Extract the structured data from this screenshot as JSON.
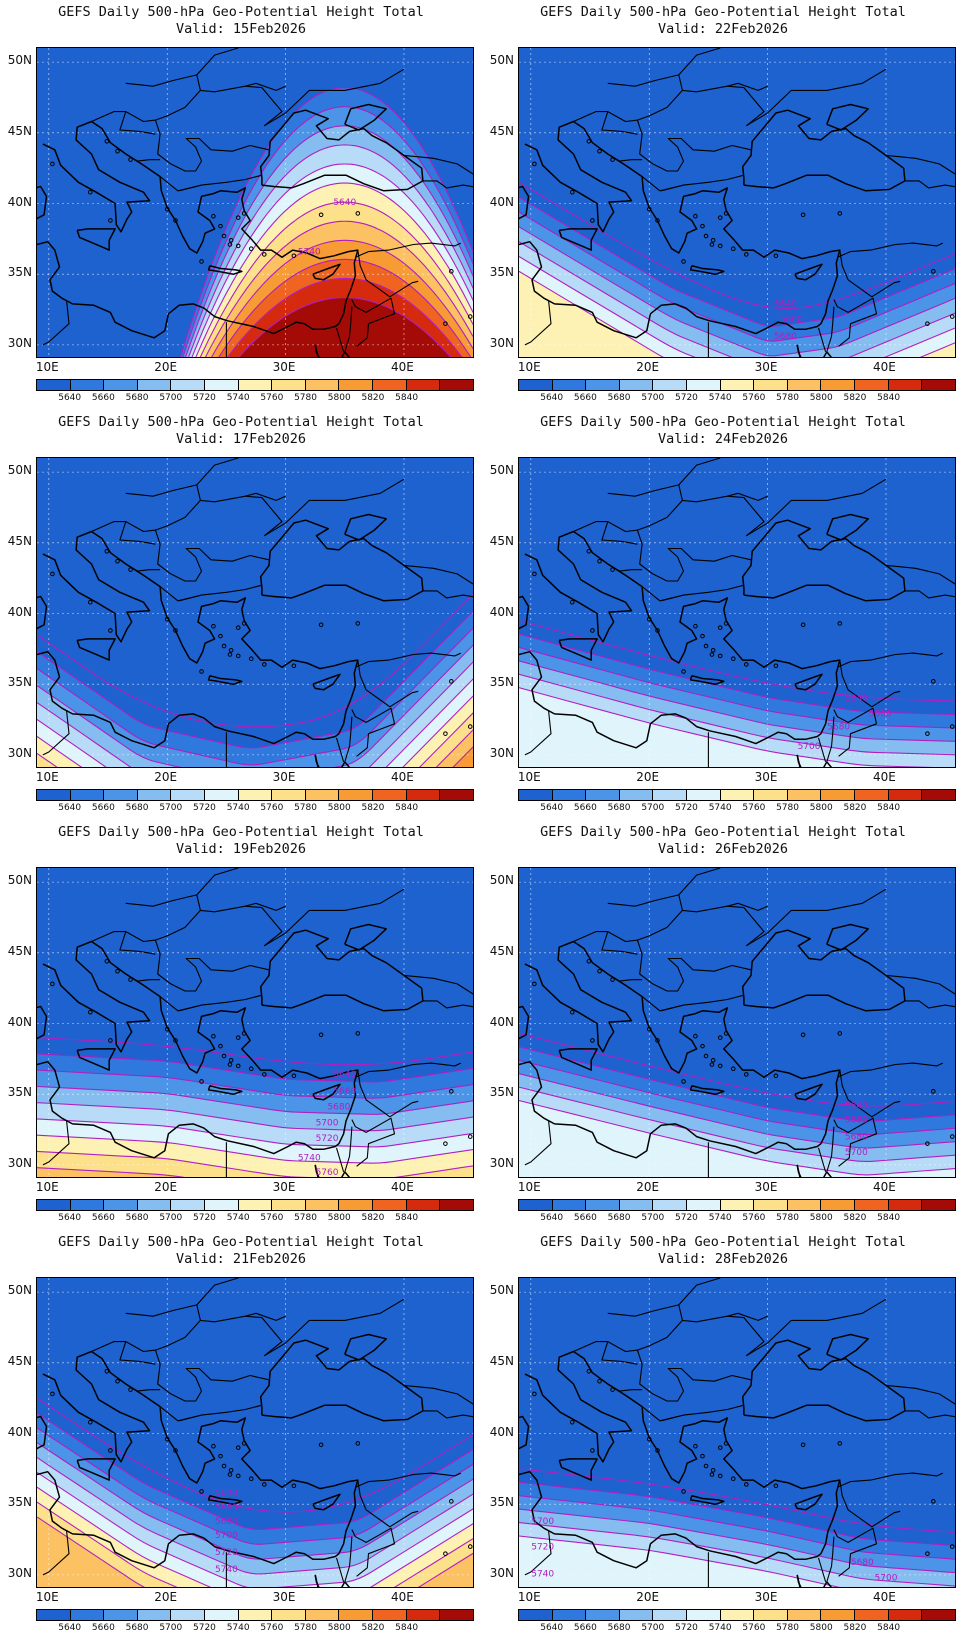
{
  "colors": {
    "levels": [
      "#1d62cf",
      "#2f78dd",
      "#4b94e8",
      "#86bdf0",
      "#b8dcf7",
      "#dff4fb",
      "#fdf2b3",
      "#fde08a",
      "#fbc163",
      "#f79b34",
      "#ee6420",
      "#d62a0f",
      "#a50b06"
    ],
    "contour": "#b020c0",
    "coast": "#000000"
  },
  "colorbar_labels": [
    "5640",
    "5660",
    "5680",
    "5700",
    "5720",
    "5740",
    "5760",
    "5780",
    "5800",
    "5820",
    "5840"
  ],
  "lat_labels": [
    "50N",
    "45N",
    "40N",
    "35N",
    "30N"
  ],
  "lon_labels": [
    "10E",
    "20E",
    "30E",
    "40E"
  ],
  "panels": [
    {
      "line1": "GEFS Daily 500-hPa Geo-Potential Height Total",
      "line2": "Valid: 15Feb2026",
      "contour_labels": [
        "5640",
        "5740"
      ]
    },
    {
      "line1": "GEFS Daily 500-hPa Geo-Potential Height Total",
      "line2": "Valid: 22Feb2026",
      "contour_labels": [
        "5640",
        "5660",
        "5680"
      ]
    },
    {
      "line1": "GEFS Daily 500-hPa Geo-Potential Height Total",
      "line2": "Valid: 17Feb2026",
      "contour_labels": []
    },
    {
      "line1": "GEFS Daily 500-hPa Geo-Potential Height Total",
      "line2": "Valid: 24Feb2026",
      "contour_labels": [
        "5640",
        "5660",
        "5680",
        "5700"
      ]
    },
    {
      "line1": "GEFS Daily 500-hPa Geo-Potential Height Total",
      "line2": "Valid: 19Feb2026",
      "contour_labels": [
        "5640",
        "5660",
        "5680",
        "5700",
        "5720",
        "5740",
        "5760"
      ]
    },
    {
      "line1": "GEFS Daily 500-hPa Geo-Potential Height Total",
      "line2": "Valid: 26Feb2026",
      "contour_labels": [
        "5640",
        "5660",
        "5680",
        "5700"
      ]
    },
    {
      "line1": "GEFS Daily 500-hPa Geo-Potential Height Total",
      "line2": "Valid: 21Feb2026",
      "contour_labels": [
        "5640",
        "5660",
        "5680",
        "5700",
        "5720",
        "5740"
      ]
    },
    {
      "line1": "GEFS Daily 500-hPa Geo-Potential Height Total",
      "line2": "Valid: 28Feb2026",
      "contour_labels": [
        "5700",
        "5720",
        "5740",
        "5680",
        "5700"
      ]
    }
  ]
}
